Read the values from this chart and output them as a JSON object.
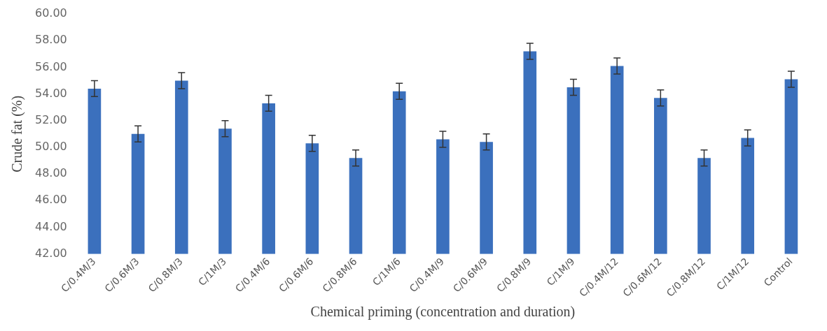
{
  "chart_data": {
    "type": "bar",
    "xlabel": "Chemical priming (concentration and duration)",
    "ylabel": "Crude fat (%)",
    "categories": [
      "C/0.4M/3",
      "C/0.6M/3",
      "C/0.8M/3",
      "C/1M/3",
      "C/0.4M/6",
      "C/0.6M/6",
      "C/0.8M/6",
      "C/1M/6",
      "C/0.4M/9",
      "C/0.6M/9",
      "C/0.8M/9",
      "C/1M/9",
      "C/0.4M/12",
      "C/0.6M/12",
      "C/0.8M/12",
      "C/1M/12",
      "Control"
    ],
    "values": [
      54.4,
      51.0,
      55.0,
      51.4,
      53.3,
      50.3,
      49.2,
      54.2,
      50.6,
      50.4,
      57.2,
      54.5,
      56.1,
      53.7,
      49.2,
      50.7,
      55.1
    ],
    "errors": [
      0.6,
      0.6,
      0.6,
      0.6,
      0.6,
      0.6,
      0.6,
      0.6,
      0.6,
      0.6,
      0.6,
      0.6,
      0.6,
      0.6,
      0.6,
      0.6,
      0.6
    ],
    "color": "#3b70bd",
    "ylim": [
      42,
      60
    ],
    "yticks": [
      {
        "value": 42,
        "label": "42.00"
      },
      {
        "value": 44,
        "label": "44.00"
      },
      {
        "value": 46,
        "label": "46.00"
      },
      {
        "value": 48,
        "label": "48.00"
      },
      {
        "value": 50,
        "label": "50.00"
      },
      {
        "value": 52,
        "label": "52.00"
      },
      {
        "value": 54,
        "label": "54.00"
      },
      {
        "value": 56,
        "label": "56.00"
      },
      {
        "value": 58,
        "label": "58.00"
      },
      {
        "value": 60,
        "label": "60.00"
      }
    ],
    "grid": false,
    "legend": false
  }
}
